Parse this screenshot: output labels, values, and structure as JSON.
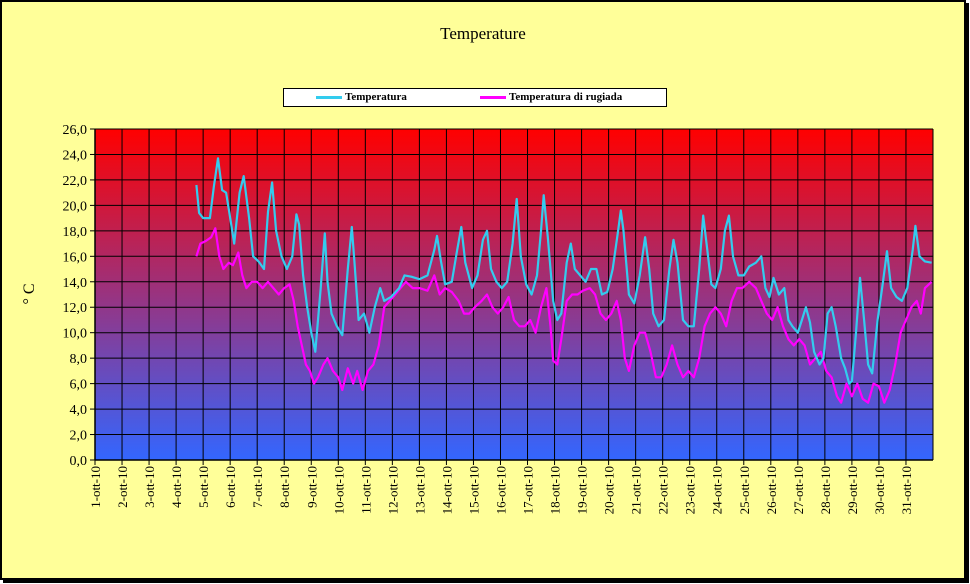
{
  "chart_data": {
    "type": "line",
    "title": "Temperature",
    "ylabel": "° C",
    "xlabel": "",
    "ylim": [
      0,
      26
    ],
    "ytick_step": 2,
    "grid": true,
    "legend_placement": "top-center",
    "background_gradient": [
      "#ff0000",
      "#3366ff"
    ],
    "categories": [
      "1-ott-10",
      "2-ott-10",
      "3-ott-10",
      "4-ott-10",
      "5-ott-10",
      "6-ott-10",
      "7-ott-10",
      "8-ott-10",
      "9-ott-10",
      "10-ott-10",
      "11-ott-10",
      "12-ott-10",
      "13-ott-10",
      "14-ott-10",
      "15-ott-10",
      "16-ott-10",
      "17-ott-10",
      "18-ott-10",
      "19-ott-10",
      "20-ott-10",
      "21-ott-10",
      "22-ott-10",
      "23-ott-10",
      "24-ott-10",
      "25-ott-10",
      "26-ott-10",
      "27-ott-10",
      "28-ott-10",
      "29-ott-10",
      "30-ott-10",
      "31-ott-10"
    ],
    "series": [
      {
        "name": "Temperatura",
        "color": "#33ccee",
        "points": [
          [
            3.75,
            21.6
          ],
          [
            3.85,
            19.4
          ],
          [
            4.0,
            19.0
          ],
          [
            4.25,
            19.0
          ],
          [
            4.4,
            21.5
          ],
          [
            4.55,
            23.7
          ],
          [
            4.7,
            21.2
          ],
          [
            4.85,
            21.0
          ],
          [
            5.0,
            19.0
          ],
          [
            5.15,
            17.0
          ],
          [
            5.35,
            21.0
          ],
          [
            5.5,
            22.3
          ],
          [
            5.7,
            19.0
          ],
          [
            5.85,
            16.0
          ],
          [
            6.05,
            15.6
          ],
          [
            6.25,
            15.0
          ],
          [
            6.4,
            19.5
          ],
          [
            6.55,
            21.8
          ],
          [
            6.7,
            18.0
          ],
          [
            6.9,
            16.0
          ],
          [
            7.1,
            15.0
          ],
          [
            7.3,
            16.0
          ],
          [
            7.45,
            19.3
          ],
          [
            7.55,
            18.5
          ],
          [
            7.7,
            14.5
          ],
          [
            7.85,
            12.0
          ],
          [
            8.0,
            10.0
          ],
          [
            8.15,
            8.5
          ],
          [
            8.35,
            13.5
          ],
          [
            8.5,
            17.8
          ],
          [
            8.6,
            14.0
          ],
          [
            8.75,
            11.5
          ],
          [
            8.95,
            10.5
          ],
          [
            9.15,
            9.8
          ],
          [
            9.35,
            15.0
          ],
          [
            9.5,
            18.3
          ],
          [
            9.6,
            15.5
          ],
          [
            9.75,
            11.0
          ],
          [
            9.95,
            11.5
          ],
          [
            10.15,
            10.0
          ],
          [
            10.35,
            12.0
          ],
          [
            10.55,
            13.5
          ],
          [
            10.7,
            12.5
          ],
          [
            10.95,
            12.8
          ],
          [
            11.25,
            13.5
          ],
          [
            11.45,
            14.5
          ],
          [
            11.7,
            14.4
          ],
          [
            12.0,
            14.2
          ],
          [
            12.3,
            14.5
          ],
          [
            12.55,
            16.5
          ],
          [
            12.65,
            17.6
          ],
          [
            12.8,
            15.6
          ],
          [
            12.95,
            13.8
          ],
          [
            13.2,
            14.0
          ],
          [
            13.4,
            16.5
          ],
          [
            13.55,
            18.3
          ],
          [
            13.7,
            15.5
          ],
          [
            13.95,
            13.5
          ],
          [
            14.15,
            14.5
          ],
          [
            14.35,
            17.3
          ],
          [
            14.5,
            18.0
          ],
          [
            14.65,
            15.0
          ],
          [
            14.85,
            14.0
          ],
          [
            15.05,
            13.5
          ],
          [
            15.25,
            14.0
          ],
          [
            15.45,
            17.0
          ],
          [
            15.6,
            20.5
          ],
          [
            15.75,
            16.0
          ],
          [
            15.95,
            13.8
          ],
          [
            16.15,
            13.0
          ],
          [
            16.35,
            14.5
          ],
          [
            16.5,
            18.0
          ],
          [
            16.6,
            20.8
          ],
          [
            16.75,
            17.5
          ],
          [
            16.95,
            12.5
          ],
          [
            17.1,
            11.0
          ],
          [
            17.25,
            11.5
          ],
          [
            17.45,
            15.5
          ],
          [
            17.6,
            17.0
          ],
          [
            17.75,
            15.0
          ],
          [
            17.95,
            14.5
          ],
          [
            18.15,
            14.0
          ],
          [
            18.35,
            15.0
          ],
          [
            18.55,
            15.0
          ],
          [
            18.75,
            13.0
          ],
          [
            18.95,
            13.2
          ],
          [
            19.15,
            15.0
          ],
          [
            19.35,
            18.0
          ],
          [
            19.45,
            19.6
          ],
          [
            19.55,
            18.0
          ],
          [
            19.75,
            13.0
          ],
          [
            19.95,
            12.3
          ],
          [
            20.15,
            14.5
          ],
          [
            20.35,
            17.5
          ],
          [
            20.5,
            15.0
          ],
          [
            20.65,
            11.5
          ],
          [
            20.85,
            10.5
          ],
          [
            21.05,
            11.0
          ],
          [
            21.25,
            15.0
          ],
          [
            21.4,
            17.3
          ],
          [
            21.55,
            15.5
          ],
          [
            21.75,
            11.0
          ],
          [
            21.95,
            10.5
          ],
          [
            22.15,
            10.5
          ],
          [
            22.35,
            15.0
          ],
          [
            22.5,
            19.2
          ],
          [
            22.65,
            16.5
          ],
          [
            22.8,
            13.8
          ],
          [
            22.95,
            13.5
          ],
          [
            23.15,
            15.0
          ],
          [
            23.3,
            18.0
          ],
          [
            23.45,
            19.2
          ],
          [
            23.6,
            16.0
          ],
          [
            23.8,
            14.5
          ],
          [
            24.0,
            14.5
          ],
          [
            24.2,
            15.2
          ],
          [
            24.45,
            15.5
          ],
          [
            24.65,
            16.0
          ],
          [
            24.8,
            13.5
          ],
          [
            24.95,
            12.8
          ],
          [
            25.1,
            14.3
          ],
          [
            25.3,
            13.0
          ],
          [
            25.5,
            13.5
          ],
          [
            25.65,
            11.0
          ],
          [
            25.8,
            10.5
          ],
          [
            26.0,
            10.0
          ],
          [
            26.15,
            11.0
          ],
          [
            26.3,
            12.0
          ],
          [
            26.45,
            10.8
          ],
          [
            26.6,
            8.5
          ],
          [
            26.8,
            7.5
          ],
          [
            26.95,
            8.0
          ],
          [
            27.1,
            11.5
          ],
          [
            27.25,
            12.0
          ],
          [
            27.4,
            10.5
          ],
          [
            27.6,
            8.0
          ],
          [
            27.75,
            7.2
          ],
          [
            27.9,
            6.0
          ],
          [
            28.0,
            6.2
          ],
          [
            28.15,
            10.0
          ],
          [
            28.3,
            14.3
          ],
          [
            28.45,
            11.0
          ],
          [
            28.6,
            7.5
          ],
          [
            28.75,
            6.8
          ],
          [
            28.95,
            11.0
          ],
          [
            29.15,
            14.0
          ],
          [
            29.3,
            16.4
          ],
          [
            29.45,
            13.5
          ],
          [
            29.65,
            12.8
          ],
          [
            29.85,
            12.5
          ],
          [
            30.05,
            13.5
          ],
          [
            30.25,
            16.5
          ],
          [
            30.35,
            18.4
          ],
          [
            30.5,
            16.0
          ],
          [
            30.7,
            15.6
          ],
          [
            30.95,
            15.5
          ]
        ]
      },
      {
        "name": "Temperatura di rugiada",
        "color": "#ff00ff",
        "points": [
          [
            3.75,
            16.0
          ],
          [
            3.9,
            17.0
          ],
          [
            4.1,
            17.2
          ],
          [
            4.3,
            17.5
          ],
          [
            4.45,
            18.2
          ],
          [
            4.6,
            16.0
          ],
          [
            4.75,
            15.0
          ],
          [
            4.95,
            15.5
          ],
          [
            5.1,
            15.3
          ],
          [
            5.3,
            16.3
          ],
          [
            5.45,
            14.5
          ],
          [
            5.6,
            13.5
          ],
          [
            5.8,
            14.0
          ],
          [
            6.0,
            14.0
          ],
          [
            6.2,
            13.5
          ],
          [
            6.4,
            14.0
          ],
          [
            6.6,
            13.5
          ],
          [
            6.8,
            13.0
          ],
          [
            7.0,
            13.5
          ],
          [
            7.2,
            13.8
          ],
          [
            7.35,
            12.5
          ],
          [
            7.5,
            10.5
          ],
          [
            7.65,
            9.0
          ],
          [
            7.8,
            7.5
          ],
          [
            7.95,
            7.0
          ],
          [
            8.1,
            6.0
          ],
          [
            8.25,
            6.5
          ],
          [
            8.45,
            7.5
          ],
          [
            8.6,
            8.0
          ],
          [
            8.8,
            7.0
          ],
          [
            9.0,
            6.5
          ],
          [
            9.15,
            5.5
          ],
          [
            9.35,
            7.2
          ],
          [
            9.55,
            6.0
          ],
          [
            9.7,
            7.0
          ],
          [
            9.9,
            5.5
          ],
          [
            10.1,
            7.0
          ],
          [
            10.3,
            7.5
          ],
          [
            10.5,
            9.0
          ],
          [
            10.7,
            12.0
          ],
          [
            10.9,
            12.5
          ],
          [
            11.1,
            13.0
          ],
          [
            11.3,
            13.5
          ],
          [
            11.5,
            14.0
          ],
          [
            11.75,
            13.5
          ],
          [
            12.0,
            13.5
          ],
          [
            12.3,
            13.3
          ],
          [
            12.55,
            14.5
          ],
          [
            12.75,
            13.0
          ],
          [
            12.95,
            13.5
          ],
          [
            13.2,
            13.2
          ],
          [
            13.45,
            12.5
          ],
          [
            13.65,
            11.5
          ],
          [
            13.85,
            11.5
          ],
          [
            14.05,
            12.0
          ],
          [
            14.3,
            12.5
          ],
          [
            14.5,
            13.0
          ],
          [
            14.7,
            12.0
          ],
          [
            14.9,
            11.5
          ],
          [
            15.1,
            12.0
          ],
          [
            15.3,
            12.8
          ],
          [
            15.5,
            11.0
          ],
          [
            15.7,
            10.5
          ],
          [
            15.9,
            10.5
          ],
          [
            16.1,
            11.0
          ],
          [
            16.3,
            10.0
          ],
          [
            16.5,
            12.0
          ],
          [
            16.7,
            13.5
          ],
          [
            16.85,
            10.5
          ],
          [
            16.95,
            7.8
          ],
          [
            17.1,
            7.5
          ],
          [
            17.25,
            9.5
          ],
          [
            17.45,
            12.5
          ],
          [
            17.65,
            13.0
          ],
          [
            17.85,
            13.0
          ],
          [
            18.05,
            13.3
          ],
          [
            18.3,
            13.5
          ],
          [
            18.5,
            13.0
          ],
          [
            18.7,
            11.5
          ],
          [
            18.9,
            11.0
          ],
          [
            19.1,
            11.5
          ],
          [
            19.3,
            12.5
          ],
          [
            19.45,
            11.0
          ],
          [
            19.6,
            8.0
          ],
          [
            19.75,
            7.0
          ],
          [
            19.95,
            9.0
          ],
          [
            20.15,
            10.0
          ],
          [
            20.35,
            10.0
          ],
          [
            20.55,
            8.5
          ],
          [
            20.75,
            6.5
          ],
          [
            20.95,
            6.5
          ],
          [
            21.15,
            7.5
          ],
          [
            21.35,
            9.0
          ],
          [
            21.55,
            7.5
          ],
          [
            21.75,
            6.5
          ],
          [
            21.95,
            7.0
          ],
          [
            22.15,
            6.5
          ],
          [
            22.35,
            8.0
          ],
          [
            22.55,
            10.5
          ],
          [
            22.75,
            11.5
          ],
          [
            22.95,
            12.0
          ],
          [
            23.15,
            11.5
          ],
          [
            23.35,
            10.5
          ],
          [
            23.55,
            12.5
          ],
          [
            23.75,
            13.5
          ],
          [
            23.95,
            13.5
          ],
          [
            24.2,
            14.0
          ],
          [
            24.45,
            13.5
          ],
          [
            24.65,
            12.5
          ],
          [
            24.85,
            11.5
          ],
          [
            25.05,
            11.0
          ],
          [
            25.25,
            12.0
          ],
          [
            25.45,
            10.5
          ],
          [
            25.65,
            9.5
          ],
          [
            25.85,
            9.0
          ],
          [
            26.05,
            9.5
          ],
          [
            26.25,
            9.0
          ],
          [
            26.45,
            7.5
          ],
          [
            26.65,
            8.0
          ],
          [
            26.85,
            8.5
          ],
          [
            27.05,
            7.0
          ],
          [
            27.25,
            6.5
          ],
          [
            27.45,
            5.0
          ],
          [
            27.6,
            4.5
          ],
          [
            27.8,
            6.0
          ],
          [
            28.0,
            5.0
          ],
          [
            28.2,
            6.0
          ],
          [
            28.4,
            4.8
          ],
          [
            28.6,
            4.5
          ],
          [
            28.8,
            6.0
          ],
          [
            29.0,
            5.8
          ],
          [
            29.2,
            4.5
          ],
          [
            29.4,
            5.5
          ],
          [
            29.6,
            7.5
          ],
          [
            29.8,
            10.0
          ],
          [
            30.0,
            11.0
          ],
          [
            30.2,
            12.0
          ],
          [
            30.4,
            12.5
          ],
          [
            30.55,
            11.5
          ],
          [
            30.7,
            13.5
          ],
          [
            30.95,
            14.0
          ]
        ]
      }
    ]
  }
}
